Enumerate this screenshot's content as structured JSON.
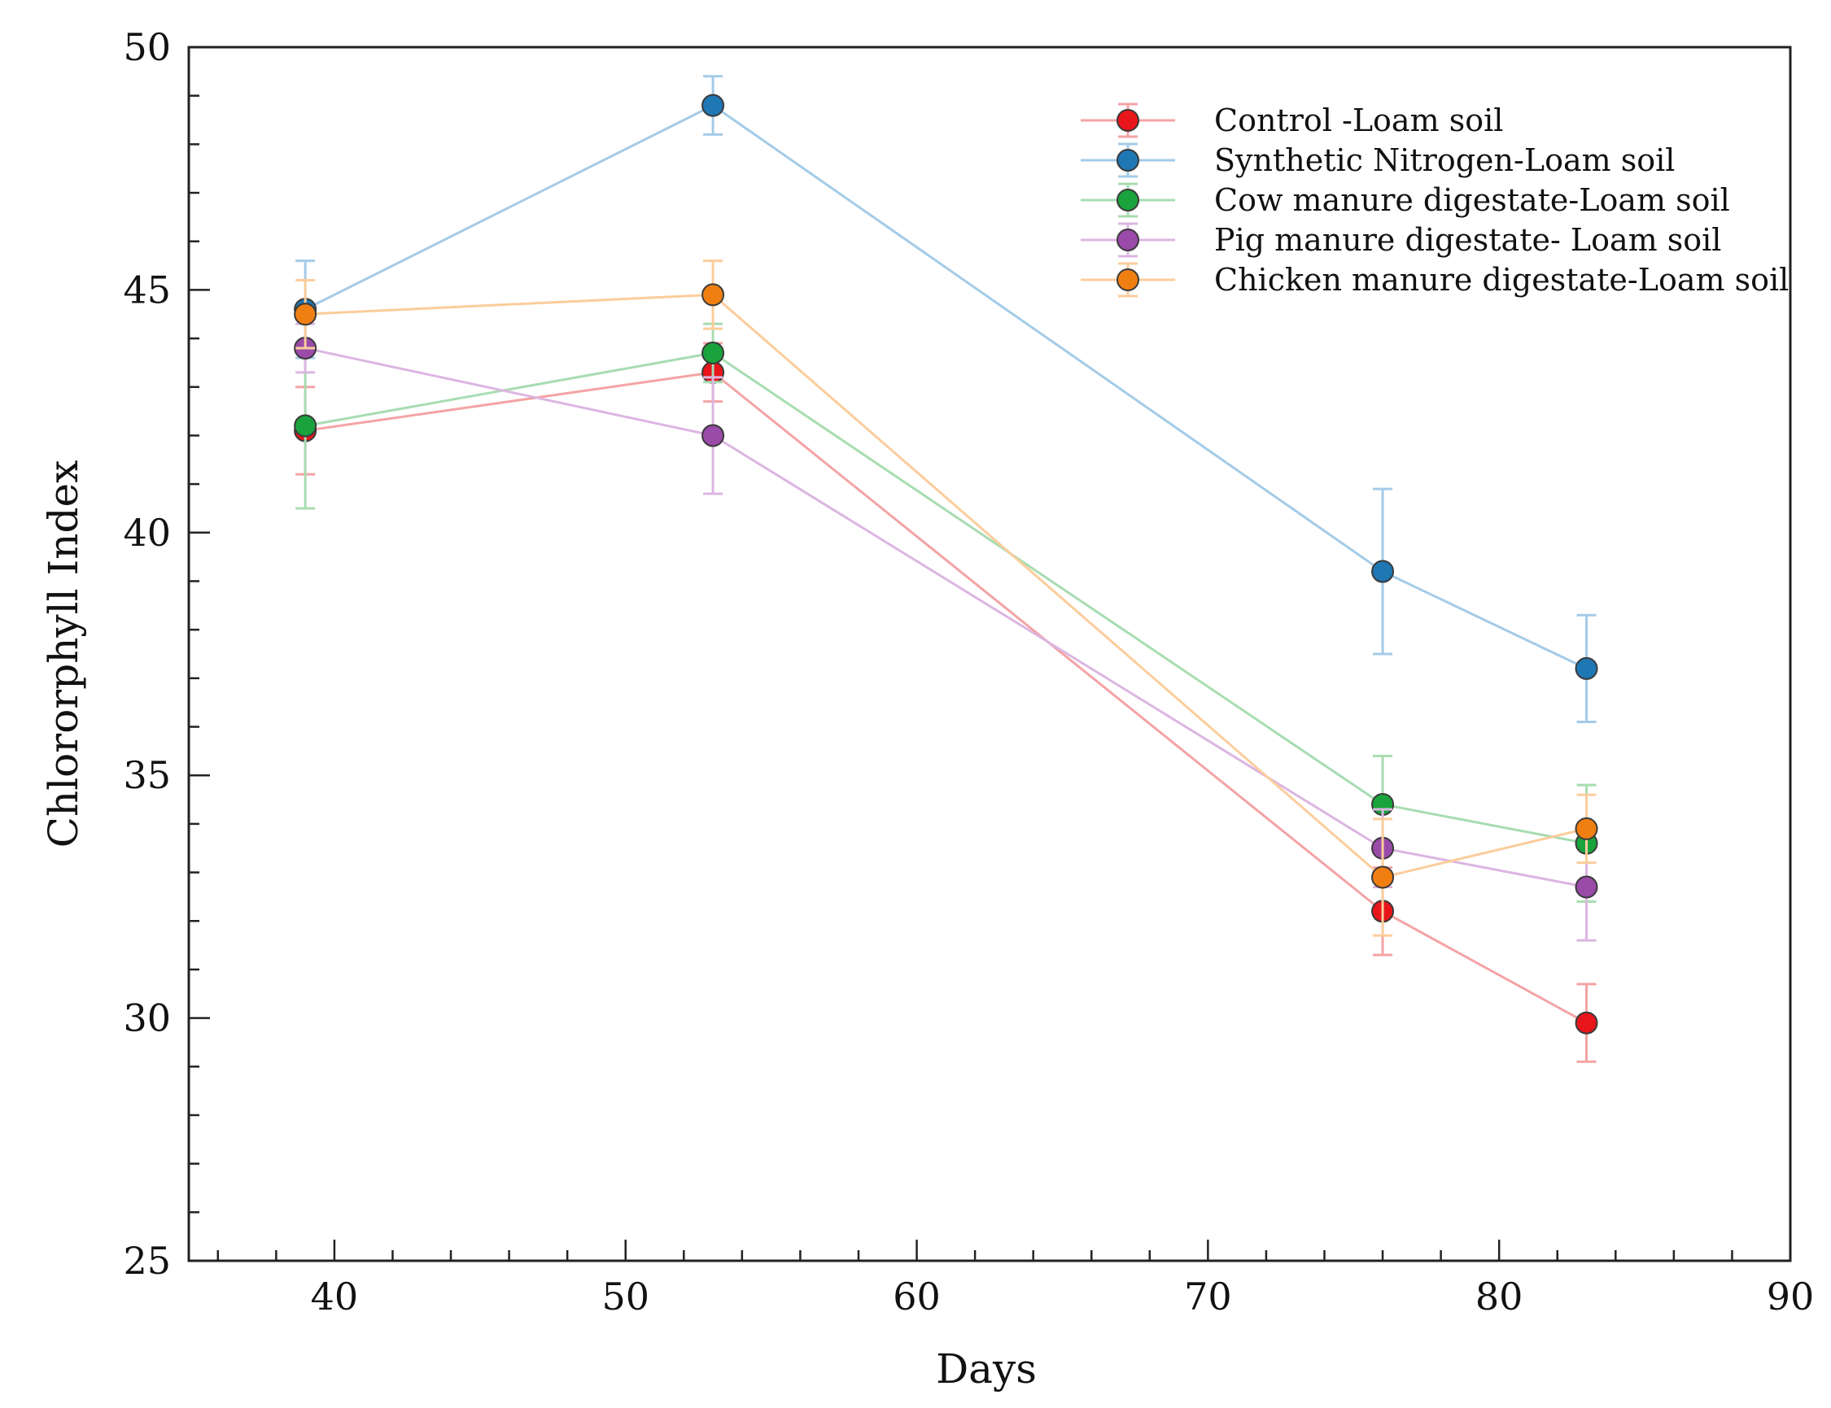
{
  "chart_data": {
    "type": "line",
    "title": "",
    "xlabel": "Days",
    "ylabel": "Chlororphyll Index",
    "xlim": [
      35,
      90
    ],
    "ylim": [
      25,
      50
    ],
    "xticks": [
      40,
      50,
      60,
      70,
      80,
      90
    ],
    "yticks": [
      25,
      30,
      35,
      40,
      45,
      50
    ],
    "x": [
      39,
      53,
      76,
      83
    ],
    "legend_position": "top-right",
    "series": [
      {
        "name": "Control -Loam soil",
        "color": "#e8151b",
        "line_color": "#f4a3a5",
        "values": [
          42.1,
          43.3,
          32.2,
          29.9
        ],
        "errors": [
          0.9,
          0.6,
          0.9,
          0.8
        ]
      },
      {
        "name": "Synthetic Nitrogen-Loam soil",
        "color": "#1f77b4",
        "line_color": "#a4cbe8",
        "values": [
          44.6,
          48.8,
          39.2,
          37.2
        ],
        "errors": [
          1.0,
          0.6,
          1.7,
          1.1
        ]
      },
      {
        "name": "Cow manure digestate-Loam soil",
        "color": "#1aa33c",
        "line_color": "#a8dcb1",
        "values": [
          42.2,
          43.7,
          34.4,
          33.6
        ],
        "errors": [
          1.7,
          0.6,
          1.0,
          1.2
        ]
      },
      {
        "name": "Pig manure digestate- Loam soil",
        "color": "#9a4aa8",
        "line_color": "#dcb6e2",
        "values": [
          43.8,
          42.0,
          33.5,
          32.7
        ],
        "errors": [
          0.5,
          1.2,
          0.8,
          1.1
        ]
      },
      {
        "name": "Chicken manure digestate-Loam soil",
        "color": "#f07f12",
        "line_color": "#fbcd9c",
        "values": [
          44.5,
          44.9,
          32.9,
          33.9
        ],
        "errors": [
          0.7,
          0.7,
          1.2,
          0.7
        ]
      }
    ]
  }
}
